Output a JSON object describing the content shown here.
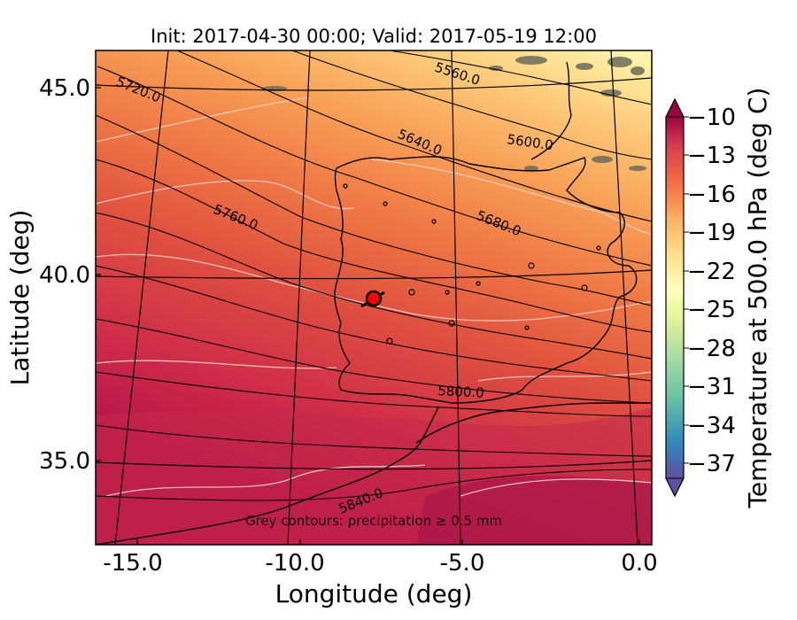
{
  "title": "Init: 2017-04-30 00:00; Valid: 2017-05-19 12:00",
  "xlabel": "Longitude (deg)",
  "ylabel": "Latitude (deg)",
  "colorbar_label": "Temperature at 500.0 hPa (deg C)",
  "annotation": "Grey contours: precipitation ≥ 0.5 mm",
  "x_ticks": [
    "-15.0",
    "-10.0",
    "-5.0",
    "0.0"
  ],
  "y_ticks": [
    "45.0",
    "40.0",
    "35.0"
  ],
  "colorbar_ticks": [
    "−10",
    "−13",
    "−16",
    "−19",
    "−22",
    "−25",
    "−28",
    "−31",
    "−34",
    "−37"
  ],
  "contour_labels": [
    "5560.0",
    "5600.0",
    "5640.0",
    "5680.0",
    "5720.0",
    "5760.0",
    "5800.0",
    "5840.0"
  ],
  "colors": {
    "warm_dark": "#b3154a",
    "warm": "#d53e4f",
    "orange": "#f46d43",
    "light_orange": "#fdae61",
    "yellow": "#fee08b",
    "pale": "#ffffbf",
    "marker": "#ff0000"
  },
  "chart_data": {
    "type": "map",
    "variable": "Temperature at 500.0 hPa (deg C)",
    "xlim": [
      -16,
      0.3
    ],
    "ylim": [
      32.7,
      46.2
    ],
    "colorbar_range": [
      -37,
      -10
    ],
    "geopotential_contours": [
      5560,
      5600,
      5640,
      5680,
      5720,
      5760,
      5800,
      5840
    ],
    "marker": {
      "lon": -7.6,
      "lat": 39.4
    }
  }
}
